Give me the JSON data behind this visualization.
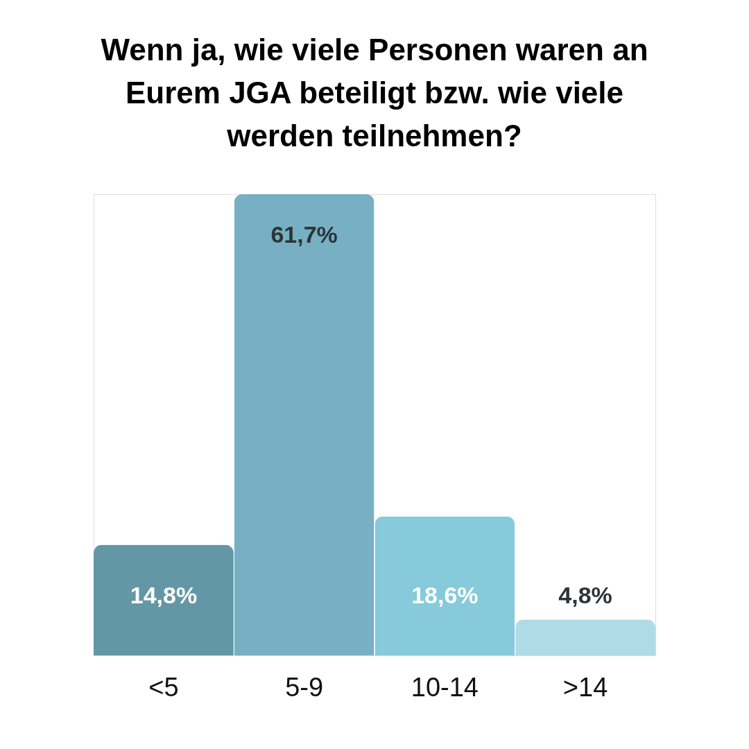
{
  "chart_data": {
    "type": "bar",
    "title": "Wenn ja, wie viele Personen waren an Eurem JGA beteiligt bzw. wie viele werden teilnehmen?",
    "categories": [
      "<5",
      "5-9",
      "10-14",
      ">14"
    ],
    "values": [
      14.8,
      61.7,
      18.6,
      4.8
    ],
    "colors": [
      "#6497a5",
      "#77b0c2",
      "#86cadb",
      "#aedbe6"
    ],
    "value_labels": [
      "14,8%",
      "61,7%",
      "18,6%",
      "4,8%"
    ],
    "tick_labels": "x",
    "grid": false,
    "legend": false
  }
}
